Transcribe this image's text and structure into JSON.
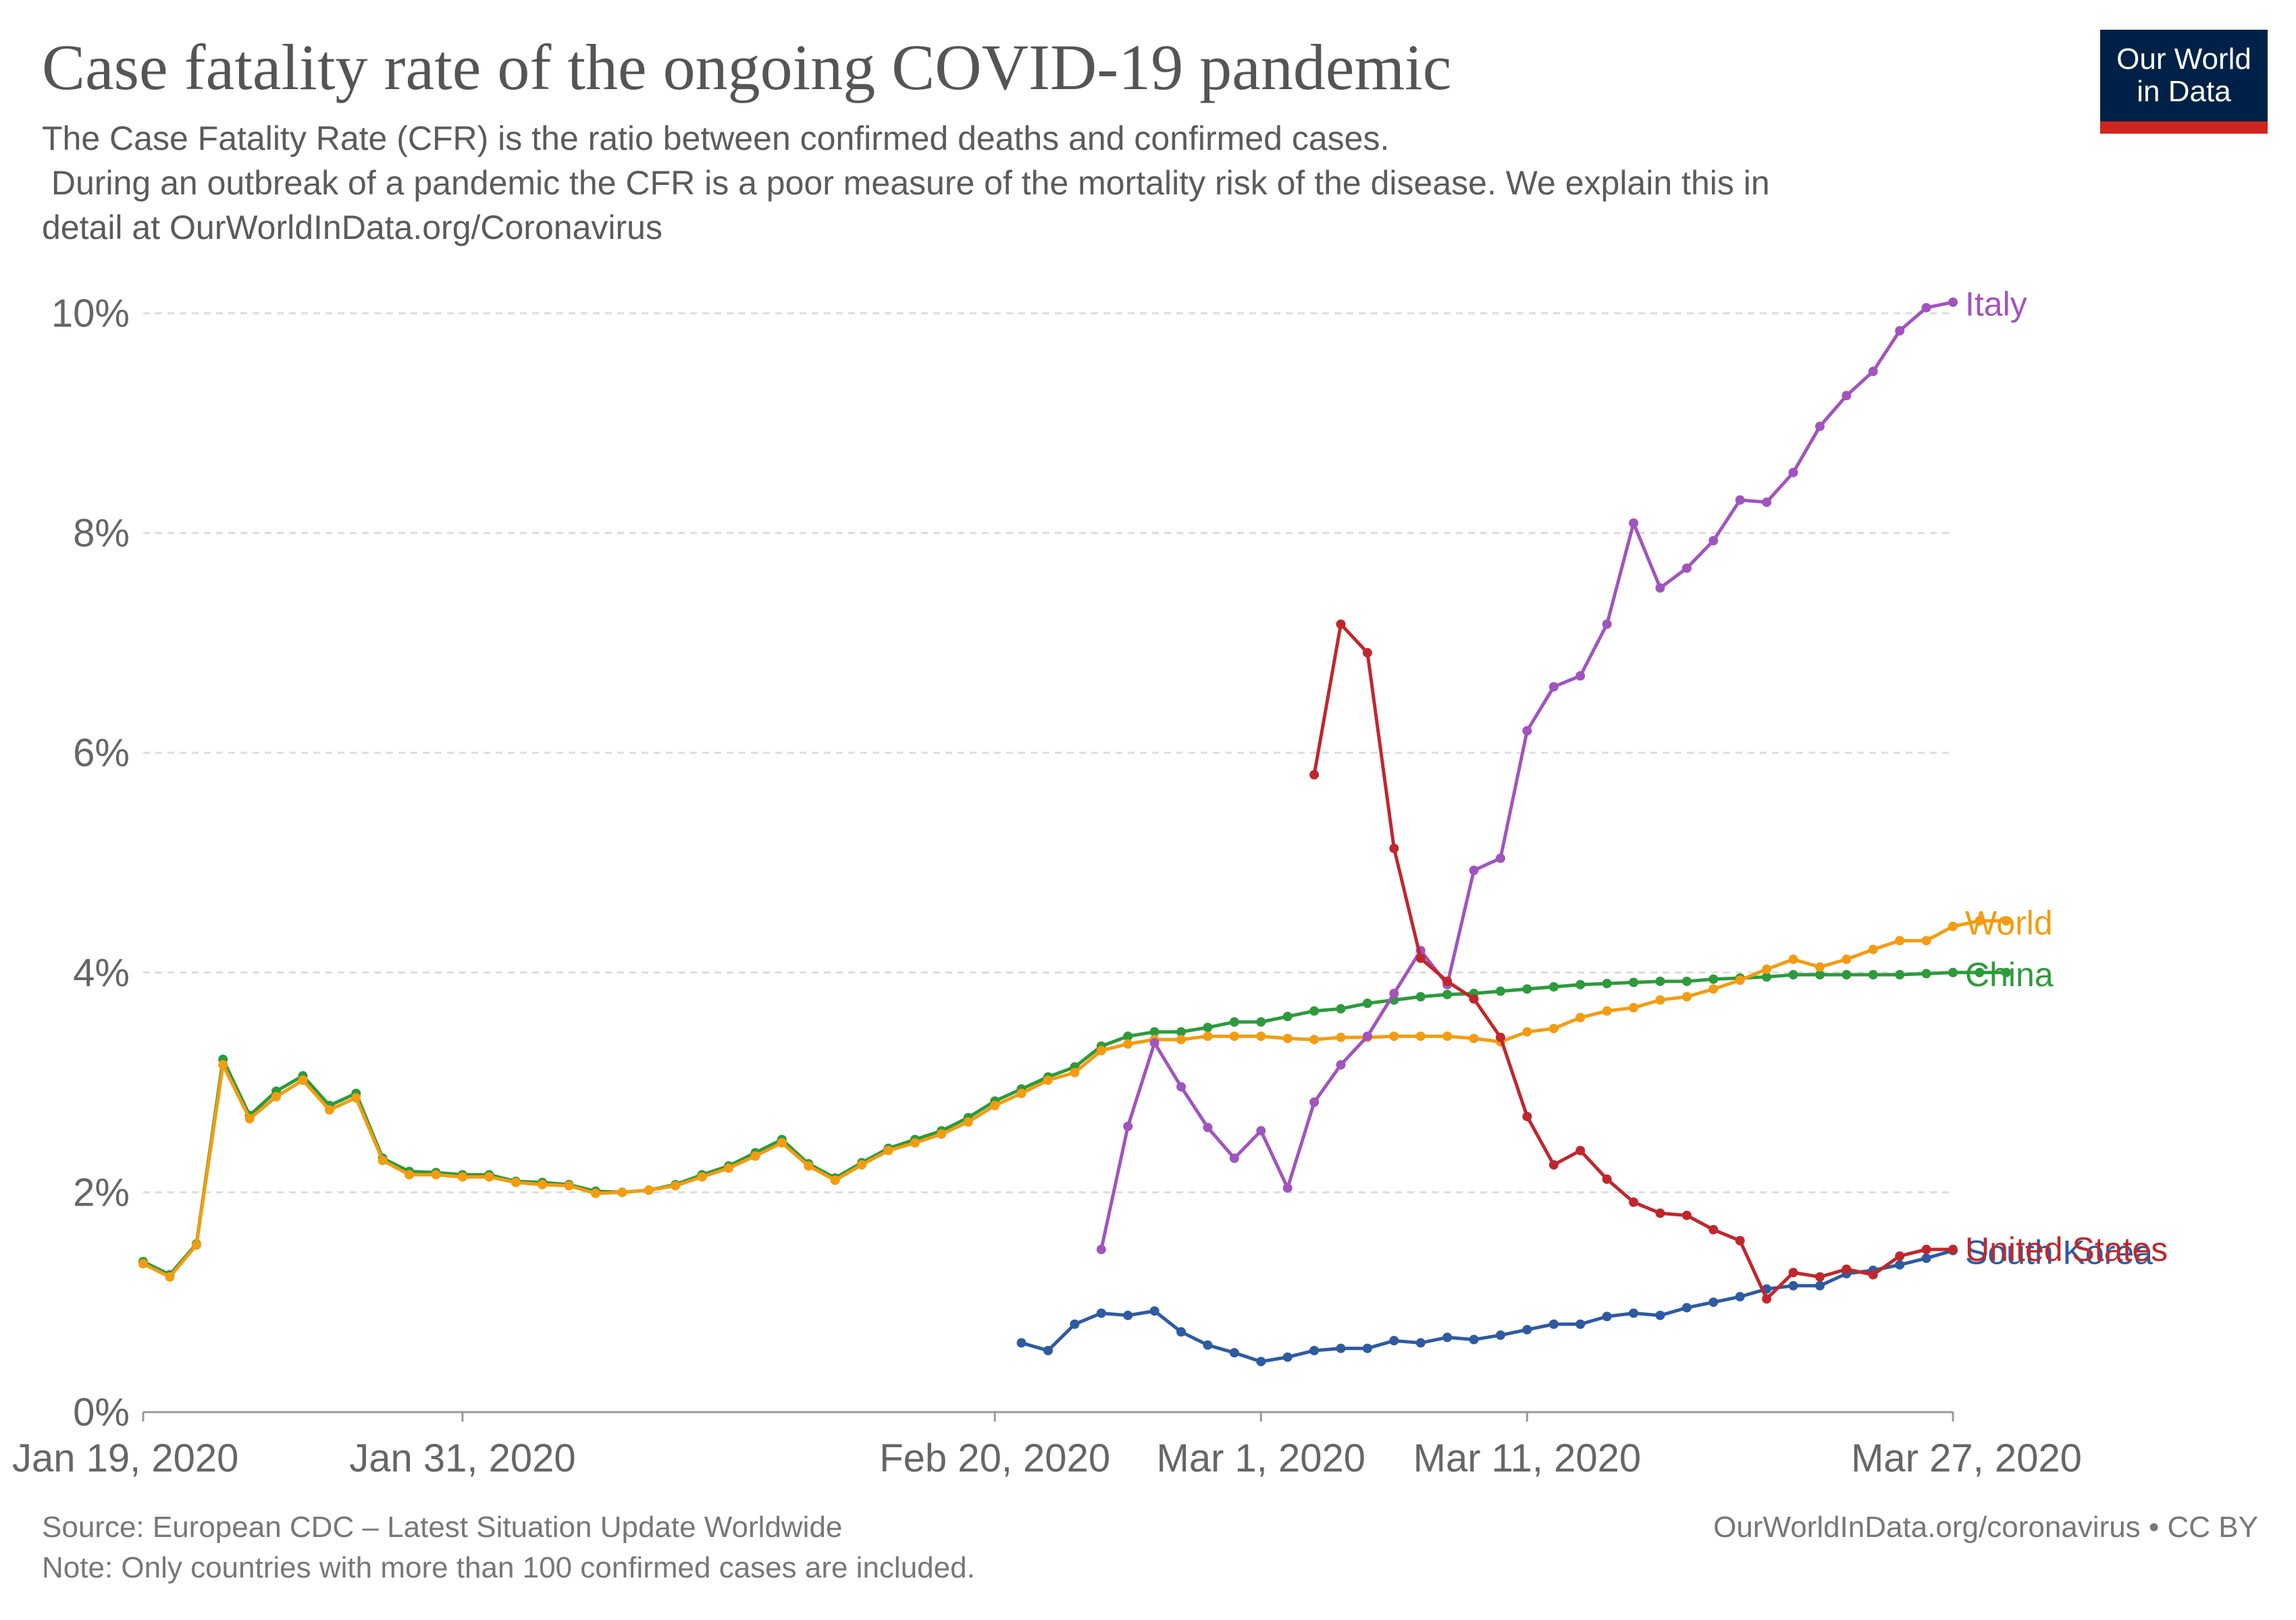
{
  "header": {
    "title": "Case fatality rate of the ongoing COVID-19 pandemic",
    "subtitle_lines": [
      "The Case Fatality Rate (CFR) is the ratio between confirmed deaths and confirmed cases.",
      " During an outbreak of a pandemic the CFR is a poor measure of the mortality risk of the disease. We explain this in",
      "detail at OurWorldInData.org/Coronavirus"
    ],
    "logo_line1": "Our World",
    "logo_line2": "in Data"
  },
  "footer": {
    "source": "Source: European CDC – Latest Situation Update Worldwide",
    "note": "Note: Only countries with more than 100 confirmed cases are included.",
    "credit": "OurWorldInData.org/coronavirus • CC BY"
  },
  "colors": {
    "background": "#ffffff",
    "grid": "#dddddd",
    "axis_text": "#666666",
    "logo_bg": "#002147",
    "logo_bar": "#ce261e"
  },
  "chart_data": {
    "type": "line",
    "title": "Case fatality rate of the ongoing COVID-19 pandemic",
    "xlabel": "",
    "ylabel": "",
    "ylim": [
      0,
      10
    ],
    "y_ticks": [
      "0%",
      "2%",
      "4%",
      "6%",
      "8%",
      "10%"
    ],
    "x_ticks": [
      "Jan 19, 2020",
      "Jan 31, 2020",
      "Feb 20, 2020",
      "Mar 1, 2020",
      "Mar 11, 2020",
      "Mar 27, 2020"
    ],
    "x_tick_dates": [
      "2020-01-19",
      "2020-01-31",
      "2020-02-20",
      "2020-03-01",
      "2020-03-11",
      "2020-03-27"
    ],
    "xlim": [
      "2020-01-19",
      "2020-03-27"
    ],
    "grid": true,
    "legend": "inline labels at line ends",
    "series": [
      {
        "name": "World",
        "color": "#f39c12",
        "start": "2020-01-19",
        "label_value": 4.47,
        "values": [
          1.35,
          1.23,
          1.52,
          3.16,
          2.67,
          2.87,
          3.02,
          2.75,
          2.86,
          2.29,
          2.16,
          2.16,
          2.14,
          2.14,
          2.09,
          2.07,
          2.06,
          1.99,
          2.0,
          2.02,
          2.06,
          2.14,
          2.22,
          2.33,
          2.45,
          2.24,
          2.11,
          2.25,
          2.38,
          2.45,
          2.53,
          2.64,
          2.79,
          2.9,
          3.02,
          3.09,
          3.29,
          3.35,
          3.39,
          3.39,
          3.42,
          3.42,
          3.42,
          3.4,
          3.39,
          3.41,
          3.41,
          3.42,
          3.42,
          3.42,
          3.4,
          3.37,
          3.46,
          3.49,
          3.59,
          3.65,
          3.68,
          3.75,
          3.78,
          3.85,
          3.93,
          4.03,
          4.12,
          4.05,
          4.12,
          4.21,
          4.29,
          4.29,
          4.42,
          4.47,
          4.47
        ]
      },
      {
        "name": "China",
        "color": "#2d9a3b",
        "start": "2020-01-19",
        "label_value": 4.0,
        "values": [
          1.37,
          1.25,
          1.53,
          3.21,
          2.7,
          2.92,
          3.06,
          2.79,
          2.9,
          2.31,
          2.19,
          2.18,
          2.16,
          2.16,
          2.1,
          2.09,
          2.07,
          2.01,
          2.0,
          2.02,
          2.07,
          2.16,
          2.24,
          2.36,
          2.48,
          2.26,
          2.13,
          2.27,
          2.4,
          2.48,
          2.56,
          2.68,
          2.83,
          2.94,
          3.05,
          3.14,
          3.33,
          3.42,
          3.46,
          3.46,
          3.5,
          3.55,
          3.55,
          3.6,
          3.65,
          3.67,
          3.72,
          3.75,
          3.78,
          3.8,
          3.81,
          3.83,
          3.85,
          3.87,
          3.89,
          3.9,
          3.91,
          3.92,
          3.92,
          3.94,
          3.95,
          3.96,
          3.98,
          3.98,
          3.98,
          3.98,
          3.98,
          3.99,
          4.0,
          4.0,
          4.0
        ]
      },
      {
        "name": "Italy",
        "color": "#a154bd",
        "start": "2020-02-24",
        "label_value": 10.1,
        "values": [
          1.48,
          2.6,
          3.36,
          2.96,
          2.59,
          2.31,
          2.56,
          2.04,
          2.82,
          3.16,
          3.42,
          3.81,
          4.2,
          3.89,
          4.93,
          5.04,
          6.2,
          6.6,
          6.7,
          7.17,
          8.09,
          7.5,
          7.68,
          7.93,
          8.3,
          8.28,
          8.55,
          8.97,
          9.25,
          9.47,
          9.84,
          10.05,
          10.1
        ]
      },
      {
        "name": "United States",
        "color": "#c0272d",
        "start": "2020-03-03",
        "label_value": 1.5,
        "values": [
          5.8,
          7.17,
          6.91,
          5.13,
          4.13,
          3.92,
          3.76,
          3.41,
          2.69,
          2.25,
          2.38,
          2.12,
          1.91,
          1.81,
          1.79,
          1.66,
          1.56,
          1.03,
          1.27,
          1.23,
          1.3,
          1.25,
          1.42,
          1.48,
          1.48
        ]
      },
      {
        "name": "South Korea",
        "color": "#2e5aa2",
        "start": "2020-02-21",
        "label_value": 1.47,
        "values": [
          0.63,
          0.56,
          0.8,
          0.9,
          0.88,
          0.92,
          0.73,
          0.61,
          0.54,
          0.46,
          0.5,
          0.56,
          0.58,
          0.58,
          0.65,
          0.63,
          0.68,
          0.66,
          0.7,
          0.75,
          0.8,
          0.8,
          0.87,
          0.9,
          0.88,
          0.95,
          1.0,
          1.05,
          1.12,
          1.15,
          1.15,
          1.26,
          1.29,
          1.34,
          1.4,
          1.47
        ]
      }
    ]
  }
}
